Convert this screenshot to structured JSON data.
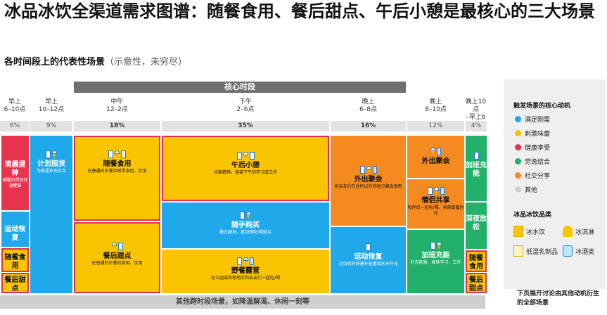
{
  "title": "冰品冰饮全渠道需求图谱：随餐食用、餐后甜点、午后小憩是最核心的三大场景",
  "subtitle": {
    "main": "各时间段上的代表性场景",
    "note": "（示意性，未穷尽）"
  },
  "core_band": "核心时段",
  "timeslots": [
    {
      "name": "早上",
      "range": "6–10点",
      "pct": "6%"
    },
    {
      "name": "早上",
      "range": "10–12点",
      "pct": "9%"
    },
    {
      "name": "中午",
      "range": "12–2点",
      "pct": "18%"
    },
    {
      "name": "下午",
      "range": "2–6点",
      "pct": "35%"
    },
    {
      "name": "晚上",
      "range": "6–8点",
      "pct": "16%"
    },
    {
      "name": "晚上",
      "range": "8–10点",
      "pct": "12%"
    },
    {
      "name": "晚上10点",
      "range": "–早上6点",
      "pct": "4%"
    }
  ],
  "blocks": {
    "qingchen": {
      "name": "清晨提神",
      "desc": "睡醒后帮助快速醒脑"
    },
    "yundong_am": {
      "name": "运动恢复"
    },
    "suican_small": {
      "name": "随餐食用"
    },
    "canhou_small": {
      "name": "餐后甜点"
    },
    "jihua": {
      "name": "计划囤货",
      "desc": "为家里补充库存"
    },
    "suican": {
      "name": "随餐食用",
      "desc": "在普通的正餐中附带食用、饮用"
    },
    "canhou": {
      "name": "餐后甜点",
      "desc": "在普通的正餐后食用、饮用"
    },
    "wuhou": {
      "name": "午后小憩",
      "desc": "抖擞精神，迎接下午的学习或工作"
    },
    "suishou": {
      "name": "随手购买",
      "desc": "路过随地，看到想吃/喝就买"
    },
    "yecan": {
      "name": "野餐露营",
      "desc": "在公园或其他地点和亲友们一起吃/喝"
    },
    "waichu_ev": {
      "name": "外出聚会",
      "desc": "和亲友们在住所以外的地方聚会享用"
    },
    "yundong_ev": {
      "name": "运动恢复",
      "desc": "运动后的快速补能量或水分补充"
    },
    "waichu_night": {
      "name": "外出聚会"
    },
    "qinglv": {
      "name": "情侣共享",
      "desc": "和伴侣一起吃/喝，共度甜蜜时光"
    },
    "jiaban_n": {
      "name": "加班充能",
      "desc": "补充能量，继续学习、工作"
    },
    "jiaban": {
      "name": "加班充能"
    },
    "shenye": {
      "name": "深夜放松"
    },
    "suican_late": {
      "name": "随餐食用"
    },
    "canhou_late": {
      "name": "餐后甜点"
    }
  },
  "bottom_bar": "其他跨时段场景，如降温解渴、休闲一刻等",
  "legend": {
    "motive_title": "触发场景的核心动机",
    "motives": [
      {
        "label": "满足刚需",
        "color": "#1fa8ea"
      },
      {
        "label": "刺激味蕾",
        "color": "#fbc400"
      },
      {
        "label": "健康享受",
        "color": "#e8334f"
      },
      {
        "label": "劳逸结合",
        "color": "#22b06a"
      },
      {
        "label": "社交分享",
        "color": "#f58a1f"
      },
      {
        "label": "其他",
        "color": "#d0d0d0"
      }
    ],
    "category_title": "冰品冰饮品类",
    "categories": [
      {
        "label": "冰水饮",
        "icon": "cup-icon"
      },
      {
        "label": "冰淇淋",
        "icon": "cone-icon"
      },
      {
        "label": "低温乳制品",
        "icon": "milk-icon"
      },
      {
        "label": "冰酒类",
        "icon": "bottle-icon"
      }
    ]
  },
  "footnote": "下页展开讨论由其他动机衍生的全部场景"
}
